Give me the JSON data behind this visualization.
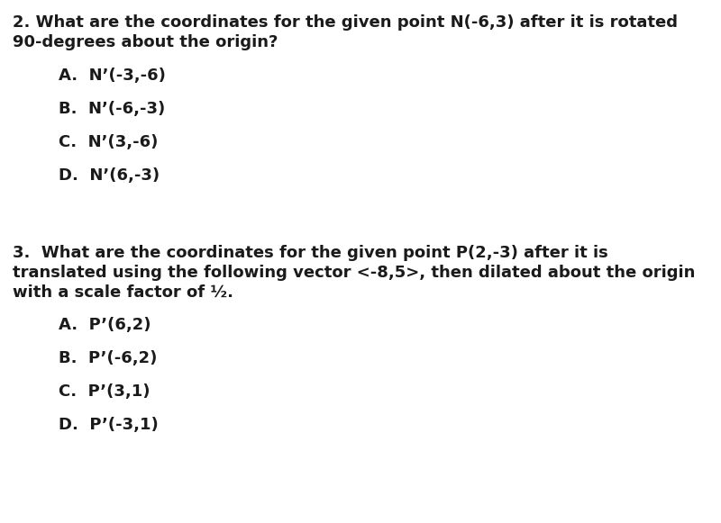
{
  "background_color": "#ffffff",
  "q2_title_line1": "2. What are the coordinates for the given point N(-6,3) after it is rotated",
  "q2_title_line2": "90-degrees about the origin?",
  "q2_options": [
    "A.  N’(-3,-6)",
    "B.  N’(-6,-3)",
    "C.  N’(3,-6)",
    "D.  N’(6,-3)"
  ],
  "q3_title_line1": "3.  What are the coordinates for the given point P(2,-3) after it is",
  "q3_title_line2": "translated using the following vector <-8,5>, then dilated about the origin",
  "q3_title_line3": "with a scale factor of ½.",
  "q3_options": [
    "A.  P’(6,2)",
    "B.  P’(-6,2)",
    "C.  P’(3,1)",
    "D.  P’(-3,1)"
  ],
  "font_size_question": 13.0,
  "font_size_option": 13.0,
  "text_color": "#1a1a1a",
  "font_family": "Arial"
}
